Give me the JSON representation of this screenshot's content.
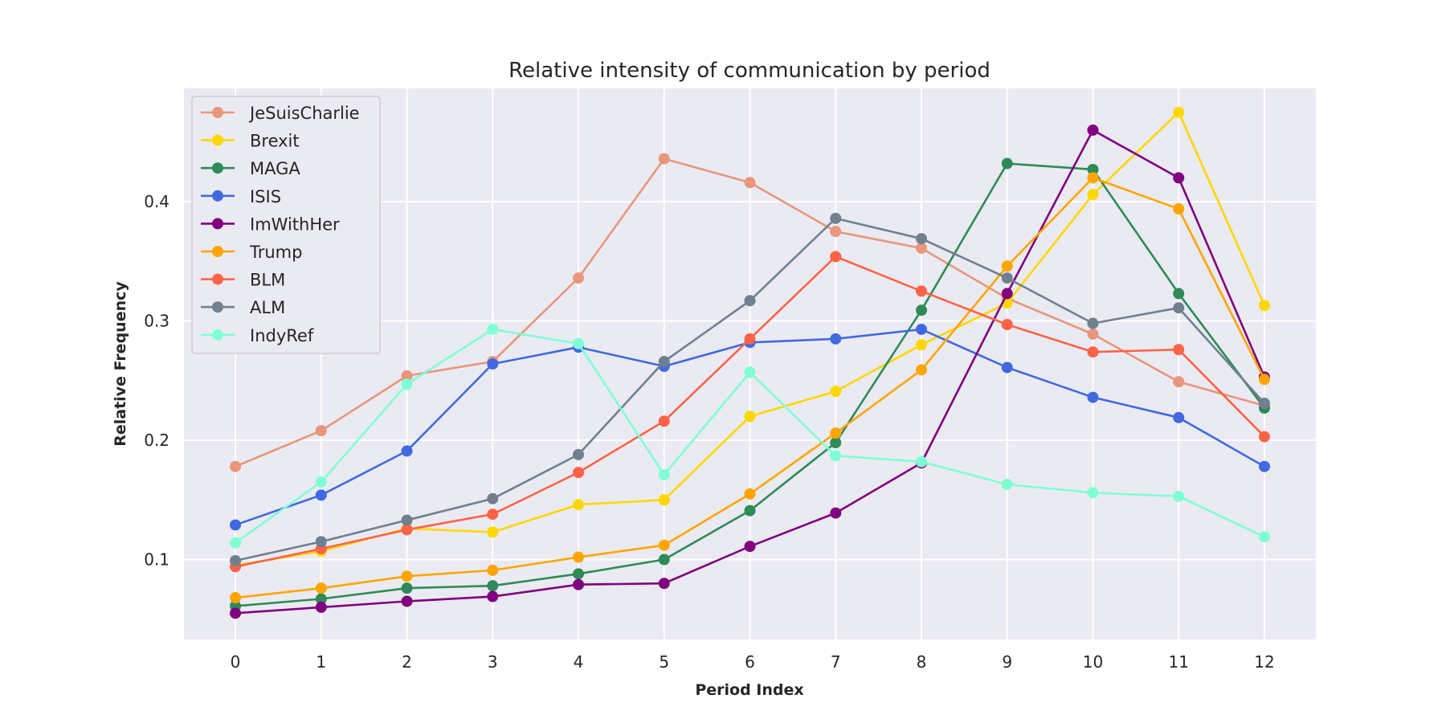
{
  "chart_data": {
    "type": "line",
    "title": "Relative intensity of communication by period",
    "xlabel": "Period Index",
    "ylabel": "Relative Frequency",
    "x": [
      0,
      1,
      2,
      3,
      4,
      5,
      6,
      7,
      8,
      9,
      10,
      11,
      12
    ],
    "xlim": [
      -0.6,
      12.6
    ],
    "ylim": [
      0.033,
      0.495
    ],
    "yticks": [
      0.1,
      0.2,
      0.3,
      0.4
    ],
    "ytick_labels": [
      "0.1",
      "0.2",
      "0.3",
      "0.4"
    ],
    "xtick_labels": [
      "0",
      "1",
      "2",
      "3",
      "4",
      "5",
      "6",
      "7",
      "8",
      "9",
      "10",
      "11",
      "12"
    ],
    "grid": true,
    "background": "#eaeaf2",
    "legend_position": "top-left",
    "series": [
      {
        "name": "JeSuisCharlie",
        "color": "#e9967a",
        "values": [
          0.178,
          0.208,
          0.254,
          0.266,
          0.336,
          0.436,
          0.416,
          0.375,
          0.361,
          0.319,
          0.289,
          0.249,
          0.229
        ]
      },
      {
        "name": "Brexit",
        "color": "#ffd700",
        "values": [
          0.095,
          0.107,
          0.126,
          0.123,
          0.146,
          0.15,
          0.22,
          0.241,
          0.28,
          0.315,
          0.406,
          0.475,
          0.313
        ]
      },
      {
        "name": "MAGA",
        "color": "#2e8b57",
        "values": [
          0.061,
          0.067,
          0.076,
          0.078,
          0.088,
          0.1,
          0.141,
          0.198,
          0.309,
          0.432,
          0.427,
          0.323,
          0.227
        ]
      },
      {
        "name": "ISIS",
        "color": "#4169e1",
        "values": [
          0.129,
          0.154,
          0.191,
          0.264,
          0.278,
          0.262,
          0.282,
          0.285,
          0.293,
          0.261,
          0.236,
          0.219,
          0.178
        ]
      },
      {
        "name": "ImWithHer",
        "color": "#800080",
        "values": [
          0.055,
          0.06,
          0.065,
          0.069,
          0.079,
          0.08,
          0.111,
          0.139,
          0.181,
          0.323,
          0.46,
          0.42,
          0.253
        ]
      },
      {
        "name": "Trump",
        "color": "#ffa500",
        "values": [
          0.068,
          0.076,
          0.086,
          0.091,
          0.102,
          0.112,
          0.155,
          0.206,
          0.259,
          0.346,
          0.42,
          0.394,
          0.251
        ]
      },
      {
        "name": "BLM",
        "color": "#ff6347",
        "values": [
          0.094,
          0.109,
          0.125,
          0.138,
          0.173,
          0.216,
          0.285,
          0.354,
          0.325,
          0.297,
          0.274,
          0.276,
          0.203
        ]
      },
      {
        "name": "ALM",
        "color": "#708090",
        "values": [
          0.099,
          0.115,
          0.133,
          0.151,
          0.188,
          0.266,
          0.317,
          0.386,
          0.369,
          0.336,
          0.298,
          0.311,
          0.231
        ]
      },
      {
        "name": "IndyRef",
        "color": "#7fffd4",
        "values": [
          0.114,
          0.165,
          0.247,
          0.293,
          0.281,
          0.171,
          0.257,
          0.187,
          0.182,
          0.163,
          0.156,
          0.153,
          0.119
        ]
      }
    ]
  }
}
